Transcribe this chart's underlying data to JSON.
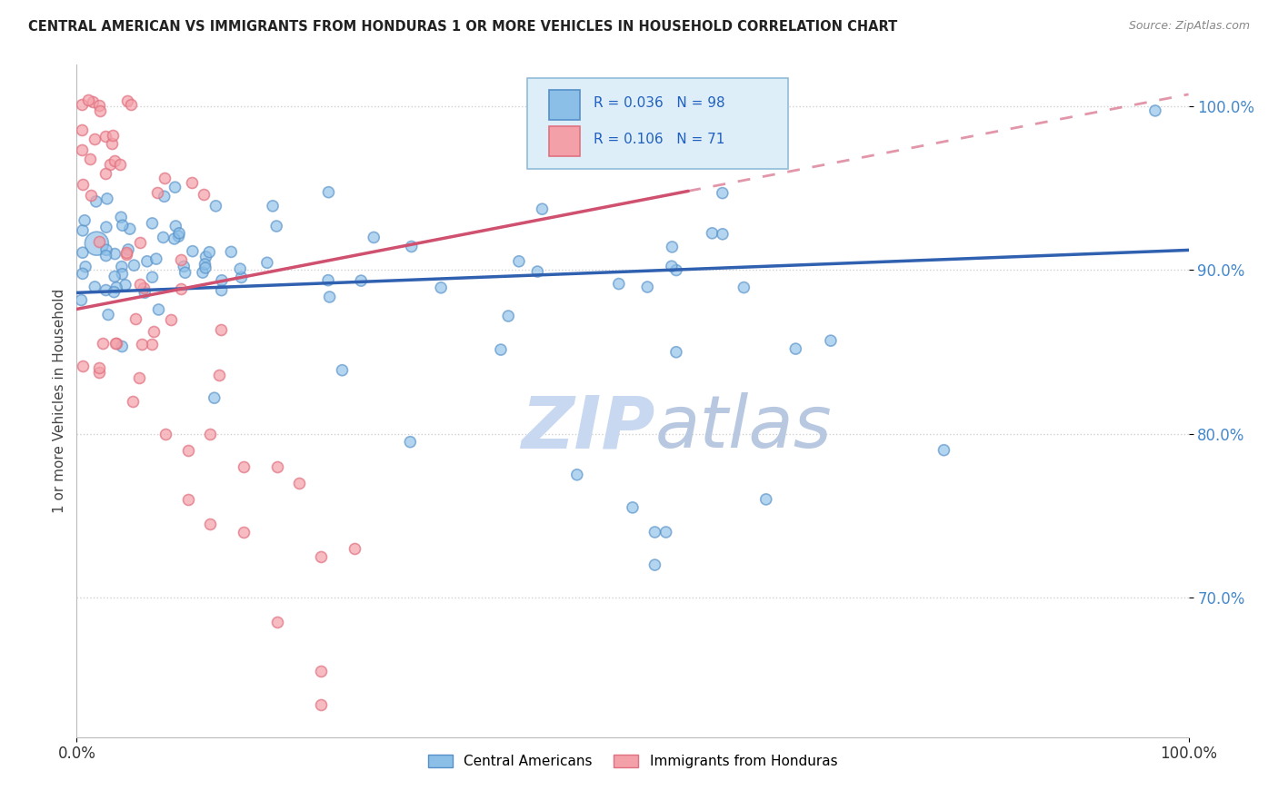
{
  "title": "CENTRAL AMERICAN VS IMMIGRANTS FROM HONDURAS 1 OR MORE VEHICLES IN HOUSEHOLD CORRELATION CHART",
  "source": "Source: ZipAtlas.com",
  "ylabel": "1 or more Vehicles in Household",
  "xmin": 0.0,
  "xmax": 1.0,
  "ymin": 0.615,
  "ymax": 1.025,
  "yticks": [
    0.7,
    0.8,
    0.9,
    1.0
  ],
  "ytick_labels": [
    "70.0%",
    "80.0%",
    "90.0%",
    "100.0%"
  ],
  "xtick_labels": [
    "0.0%",
    "100.0%"
  ],
  "blue_R": 0.036,
  "blue_N": 98,
  "pink_R": 0.106,
  "pink_N": 71,
  "blue_color": "#8bbfe8",
  "pink_color": "#f4a0a8",
  "blue_edge_color": "#5590c8",
  "pink_edge_color": "#e07080",
  "blue_line_color": "#3060b0",
  "pink_line_color": "#d05070",
  "legend_fill": "#deeef8",
  "legend_edge": "#90bcd8",
  "legend_text_color": "#2060c0",
  "watermark_color": "#c8d8f0",
  "background_color": "#ffffff",
  "grid_color": "#cccccc",
  "tick_color": "#4488cc",
  "blue_trend_start": 0.886,
  "blue_trend_end": 0.912,
  "pink_trend_x0": 0.0,
  "pink_trend_y0": 0.876,
  "pink_trend_x1": 0.55,
  "pink_trend_y1": 0.948,
  "pink_trend_dash_x0": 0.55,
  "pink_trend_dash_y0": 0.948,
  "pink_trend_dash_x1": 1.0,
  "pink_trend_dash_y1": 1.007
}
